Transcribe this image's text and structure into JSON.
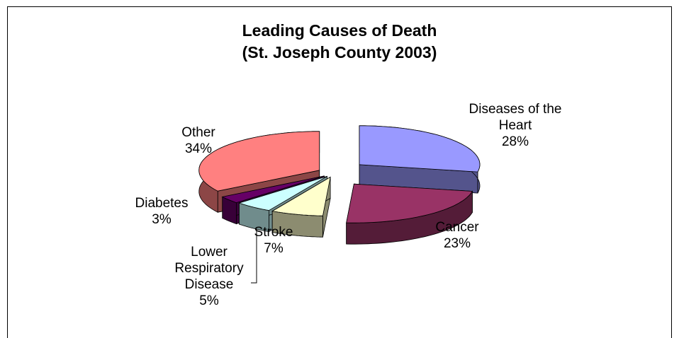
{
  "chart_data": {
    "type": "pie3d",
    "title": "Leading Causes of Death",
    "subtitle": "(St. Joseph County 2003)",
    "categories": [
      "Diseases of the Heart",
      "Cancer",
      "Stroke",
      "Lower Respiratory Disease",
      "Diabetes",
      "Other"
    ],
    "values": [
      28,
      23,
      7,
      5,
      3,
      34
    ],
    "value_labels": [
      "28%",
      "23%",
      "7%",
      "5%",
      "3%",
      "34%"
    ],
    "colors": [
      "#9999ff",
      "#993366",
      "#ffffcc",
      "#ccffff",
      "#660066",
      "#ff8080"
    ]
  }
}
